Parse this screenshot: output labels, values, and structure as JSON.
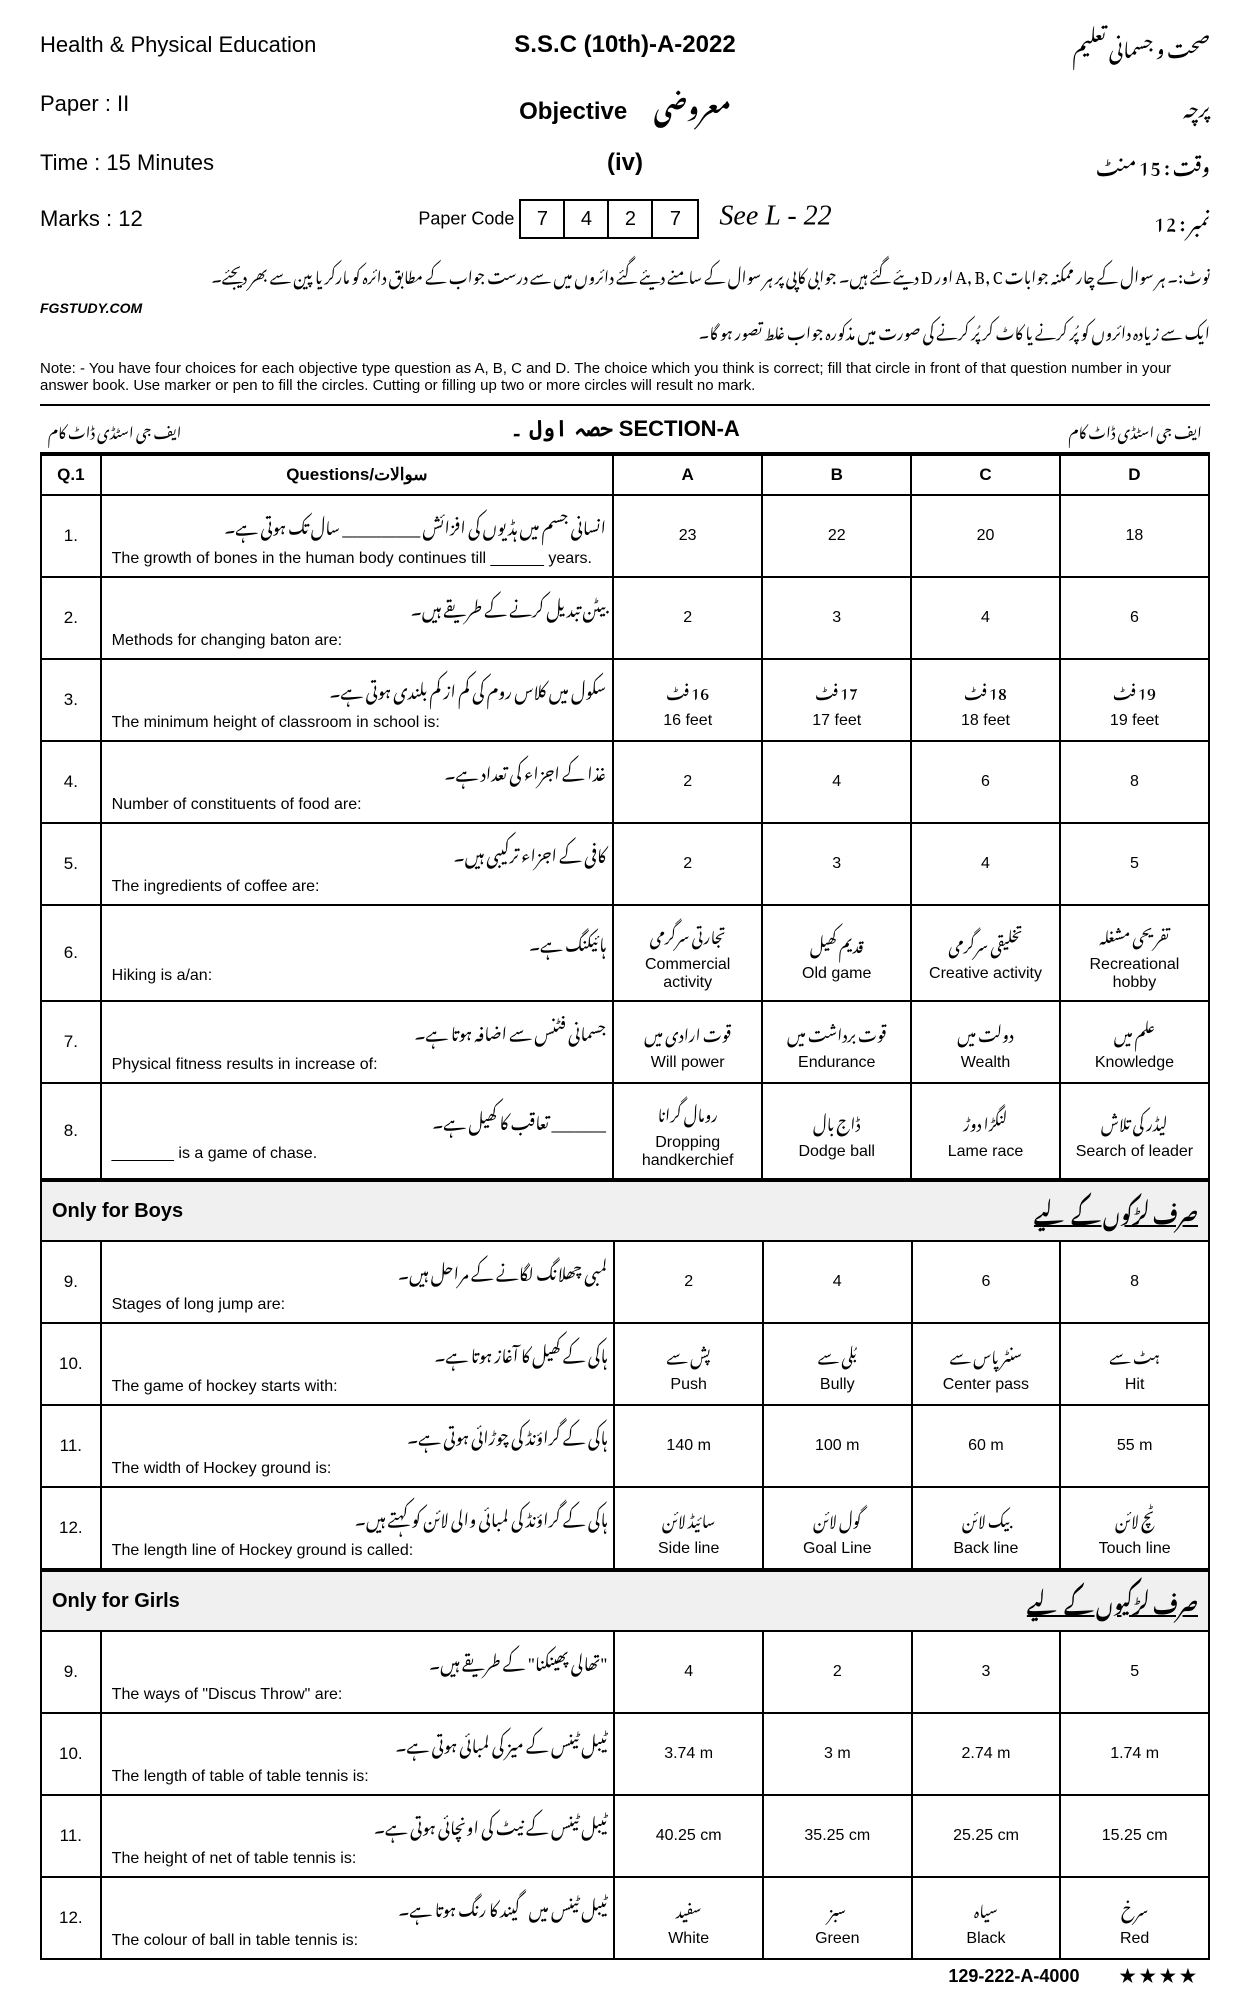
{
  "header": {
    "subject_en": "Health & Physical Education",
    "exam_title": "S.S.C (10th)-A-2022",
    "subject_ur": "صحت و جسمانی تعلیم",
    "paper_en": "Paper : II",
    "objective_en": "Objective",
    "objective_ur": "معروضی",
    "paper_ur": "پرچہ",
    "time_en": "Time : 15 Minutes",
    "group_label": "(iv)",
    "time_ur": "وقت : 15 منٹ",
    "marks_en": "Marks : 12",
    "paper_code_label": "Paper Code",
    "code_digits": [
      "7",
      "4",
      "2",
      "7"
    ],
    "roll_script": "See L - 22",
    "marks_ur": "نمبر : 12"
  },
  "notes": {
    "urdu_line1": "نوٹ:۔ ہر سوال کے چار ممکنہ جوابات A, B, C اور D دیئے گئے ہیں۔ جوابی کاپی پر ہر سوال کے سامنے دیئے گئے دائروں میں سے درست جواب کے مطابق دائرہ کو مارکر یا پین سے بھر دیجئے۔",
    "urdu_line2": "ایک سے زیادہ دائروں کو پُر کرنے یا کاٹ کر پُر کرنے کی صورت میں مذکورہ جواب غلط تصور ہو گا۔",
    "watermark": "FGSTUDY.COM",
    "english": "Note: - You have four choices for each objective type question as A, B, C and D. The choice which you think is correct; fill that circle in front of that question number in your answer book. Use marker or pen to fill the circles. Cutting or filling up two or more circles will result no mark."
  },
  "section_a": {
    "left_ur": "ایف جی اسٹڈی ڈاٹ کام",
    "title": "حصہ اول ۔ SECTION-A",
    "right_ur": "ایف جی اسٹڈی ڈاٹ کام"
  },
  "columns": {
    "num": "Q.1",
    "question": "Questions/سوالات",
    "a": "A",
    "b": "B",
    "c": "C",
    "d": "D"
  },
  "rows": [
    {
      "n": "1.",
      "q_ur": "انسانی جسم میں ہڈیوں کی افزائش __________ سال تک ہوتی ہے۔",
      "q_en": "The growth of bones in the human body continues till ______ years.",
      "a": {
        "en": "23"
      },
      "b": {
        "en": "22"
      },
      "c": {
        "en": "20"
      },
      "d": {
        "en": "18"
      }
    },
    {
      "n": "2.",
      "q_ur": "بیٹن تبدیل کرنے کے طریقے ہیں۔",
      "q_en": "Methods for changing baton are:",
      "a": {
        "en": "2"
      },
      "b": {
        "en": "3"
      },
      "c": {
        "en": "4"
      },
      "d": {
        "en": "6"
      }
    },
    {
      "n": "3.",
      "q_ur": "سکول میں کلاس روم کی کم از کم بلندی ہوتی ہے۔",
      "q_en": "The minimum height of classroom in school is:",
      "a": {
        "ur": "16 فٹ",
        "en": "16 feet"
      },
      "b": {
        "ur": "17 فٹ",
        "en": "17 feet"
      },
      "c": {
        "ur": "18 فٹ",
        "en": "18 feet"
      },
      "d": {
        "ur": "19 فٹ",
        "en": "19 feet"
      }
    },
    {
      "n": "4.",
      "q_ur": "غذا کے اجزاء کی تعداد ہے۔",
      "q_en": "Number of constituents of food are:",
      "a": {
        "en": "2"
      },
      "b": {
        "en": "4"
      },
      "c": {
        "en": "6"
      },
      "d": {
        "en": "8"
      }
    },
    {
      "n": "5.",
      "q_ur": "کافی کے اجزاء ترکیبی ہیں۔",
      "q_en": "The ingredients of coffee are:",
      "a": {
        "en": "2"
      },
      "b": {
        "en": "3"
      },
      "c": {
        "en": "4"
      },
      "d": {
        "en": "5"
      }
    },
    {
      "n": "6.",
      "q_ur": "ہائیکنگ ہے۔",
      "q_en": "Hiking is a/an:",
      "a": {
        "ur": "تجارتی سرگرمی",
        "en": "Commercial activity"
      },
      "b": {
        "ur": "قدیم کھیل",
        "en": "Old game"
      },
      "c": {
        "ur": "تخلیقی سرگرمی",
        "en": "Creative activity"
      },
      "d": {
        "ur": "تفریحی مشغلہ",
        "en": "Recreational hobby"
      }
    },
    {
      "n": "7.",
      "q_ur": "جسمانی فٹنس سے اضافہ ہوتا ہے۔",
      "q_en": "Physical fitness results in increase of:",
      "a": {
        "ur": "قوت ارادی میں",
        "en": "Will power"
      },
      "b": {
        "ur": "قوت برداشت میں",
        "en": "Endurance"
      },
      "c": {
        "ur": "دولت میں",
        "en": "Wealth"
      },
      "d": {
        "ur": "علم میں",
        "en": "Knowledge"
      }
    },
    {
      "n": "8.",
      "q_ur": "_______ تعاقب کا کھیل ہے۔",
      "q_en": "_______ is a game of chase.",
      "a": {
        "ur": "رومال گرانا",
        "en": "Dropping handkerchief"
      },
      "b": {
        "ur": "ڈاج بال",
        "en": "Dodge ball"
      },
      "c": {
        "ur": "لنگڑا دوڑ",
        "en": "Lame race"
      },
      "d": {
        "ur": "لیڈر کی تلاش",
        "en": "Search of leader"
      }
    }
  ],
  "boys_bar": {
    "en": "Only for Boys",
    "ur": "صرف لڑکوں کے لیے"
  },
  "boys_rows": [
    {
      "n": "9.",
      "q_ur": "لمبی چھلانگ لگانے کے مراحل ہیں۔",
      "q_en": "Stages of long jump are:",
      "a": {
        "en": "2"
      },
      "b": {
        "en": "4"
      },
      "c": {
        "en": "6"
      },
      "d": {
        "en": "8"
      }
    },
    {
      "n": "10.",
      "q_ur": "ہاکی کے کھیل کا آغاز ہوتا ہے۔",
      "q_en": "The game of hockey starts with:",
      "a": {
        "ur": "پش سے",
        "en": "Push"
      },
      "b": {
        "ur": "بُلی سے",
        "en": "Bully"
      },
      "c": {
        "ur": "سنٹر پاس سے",
        "en": "Center pass"
      },
      "d": {
        "ur": "ہٹ سے",
        "en": "Hit"
      }
    },
    {
      "n": "11.",
      "q_ur": "ہاکی کے گراؤنڈ کی چوڑائی ہوتی ہے۔",
      "q_en": "The width of Hockey ground is:",
      "a": {
        "en": "140 m"
      },
      "b": {
        "en": "100 m"
      },
      "c": {
        "en": "60 m"
      },
      "d": {
        "en": "55 m"
      }
    },
    {
      "n": "12.",
      "q_ur": "ہاکی کے گراؤنڈ کی لمبائی والی لائن کو کہتے ہیں۔",
      "q_en": "The length line of Hockey ground is called:",
      "a": {
        "ur": "سائیڈ لائن",
        "en": "Side line"
      },
      "b": {
        "ur": "گول لائن",
        "en": "Goal Line"
      },
      "c": {
        "ur": "بیک لائن",
        "en": "Back line"
      },
      "d": {
        "ur": "ٹچ لائن",
        "en": "Touch line"
      }
    }
  ],
  "girls_bar": {
    "en": "Only for Girls",
    "ur": "صرف لڑکیوں کے لیے"
  },
  "girls_rows": [
    {
      "n": "9.",
      "q_ur": "\"تھالی پھینکنا\" کے طریقے ہیں۔",
      "q_en": "The ways of \"Discus Throw\" are:",
      "a": {
        "en": "4"
      },
      "b": {
        "en": "2"
      },
      "c": {
        "en": "3"
      },
      "d": {
        "en": "5"
      }
    },
    {
      "n": "10.",
      "q_ur": "ٹیبل ٹینس کے میز کی لمبائی ہوتی ہے۔",
      "q_en": "The length of table of table tennis is:",
      "a": {
        "en": "3.74 m"
      },
      "b": {
        "en": "3 m"
      },
      "c": {
        "en": "2.74 m"
      },
      "d": {
        "en": "1.74 m"
      }
    },
    {
      "n": "11.",
      "q_ur": "ٹیبل ٹینس کے نیٹ کی اونچائی ہوتی ہے۔",
      "q_en": "The height of net of table tennis is:",
      "a": {
        "en": "40.25 cm"
      },
      "b": {
        "en": "35.25 cm"
      },
      "c": {
        "en": "25.25 cm"
      },
      "d": {
        "en": "15.25 cm"
      }
    },
    {
      "n": "12.",
      "q_ur": "ٹیبل ٹینس میں گیند کا رنگ ہوتا ہے۔",
      "q_en": "The colour of ball in table tennis is:",
      "a": {
        "ur": "سفید",
        "en": "White"
      },
      "b": {
        "ur": "سبز",
        "en": "Green"
      },
      "c": {
        "ur": "سیاہ",
        "en": "Black"
      },
      "d": {
        "ur": "سرخ",
        "en": "Red"
      }
    }
  ],
  "footer": {
    "code": "129-222-A-4000",
    "stars": "★★★★"
  }
}
